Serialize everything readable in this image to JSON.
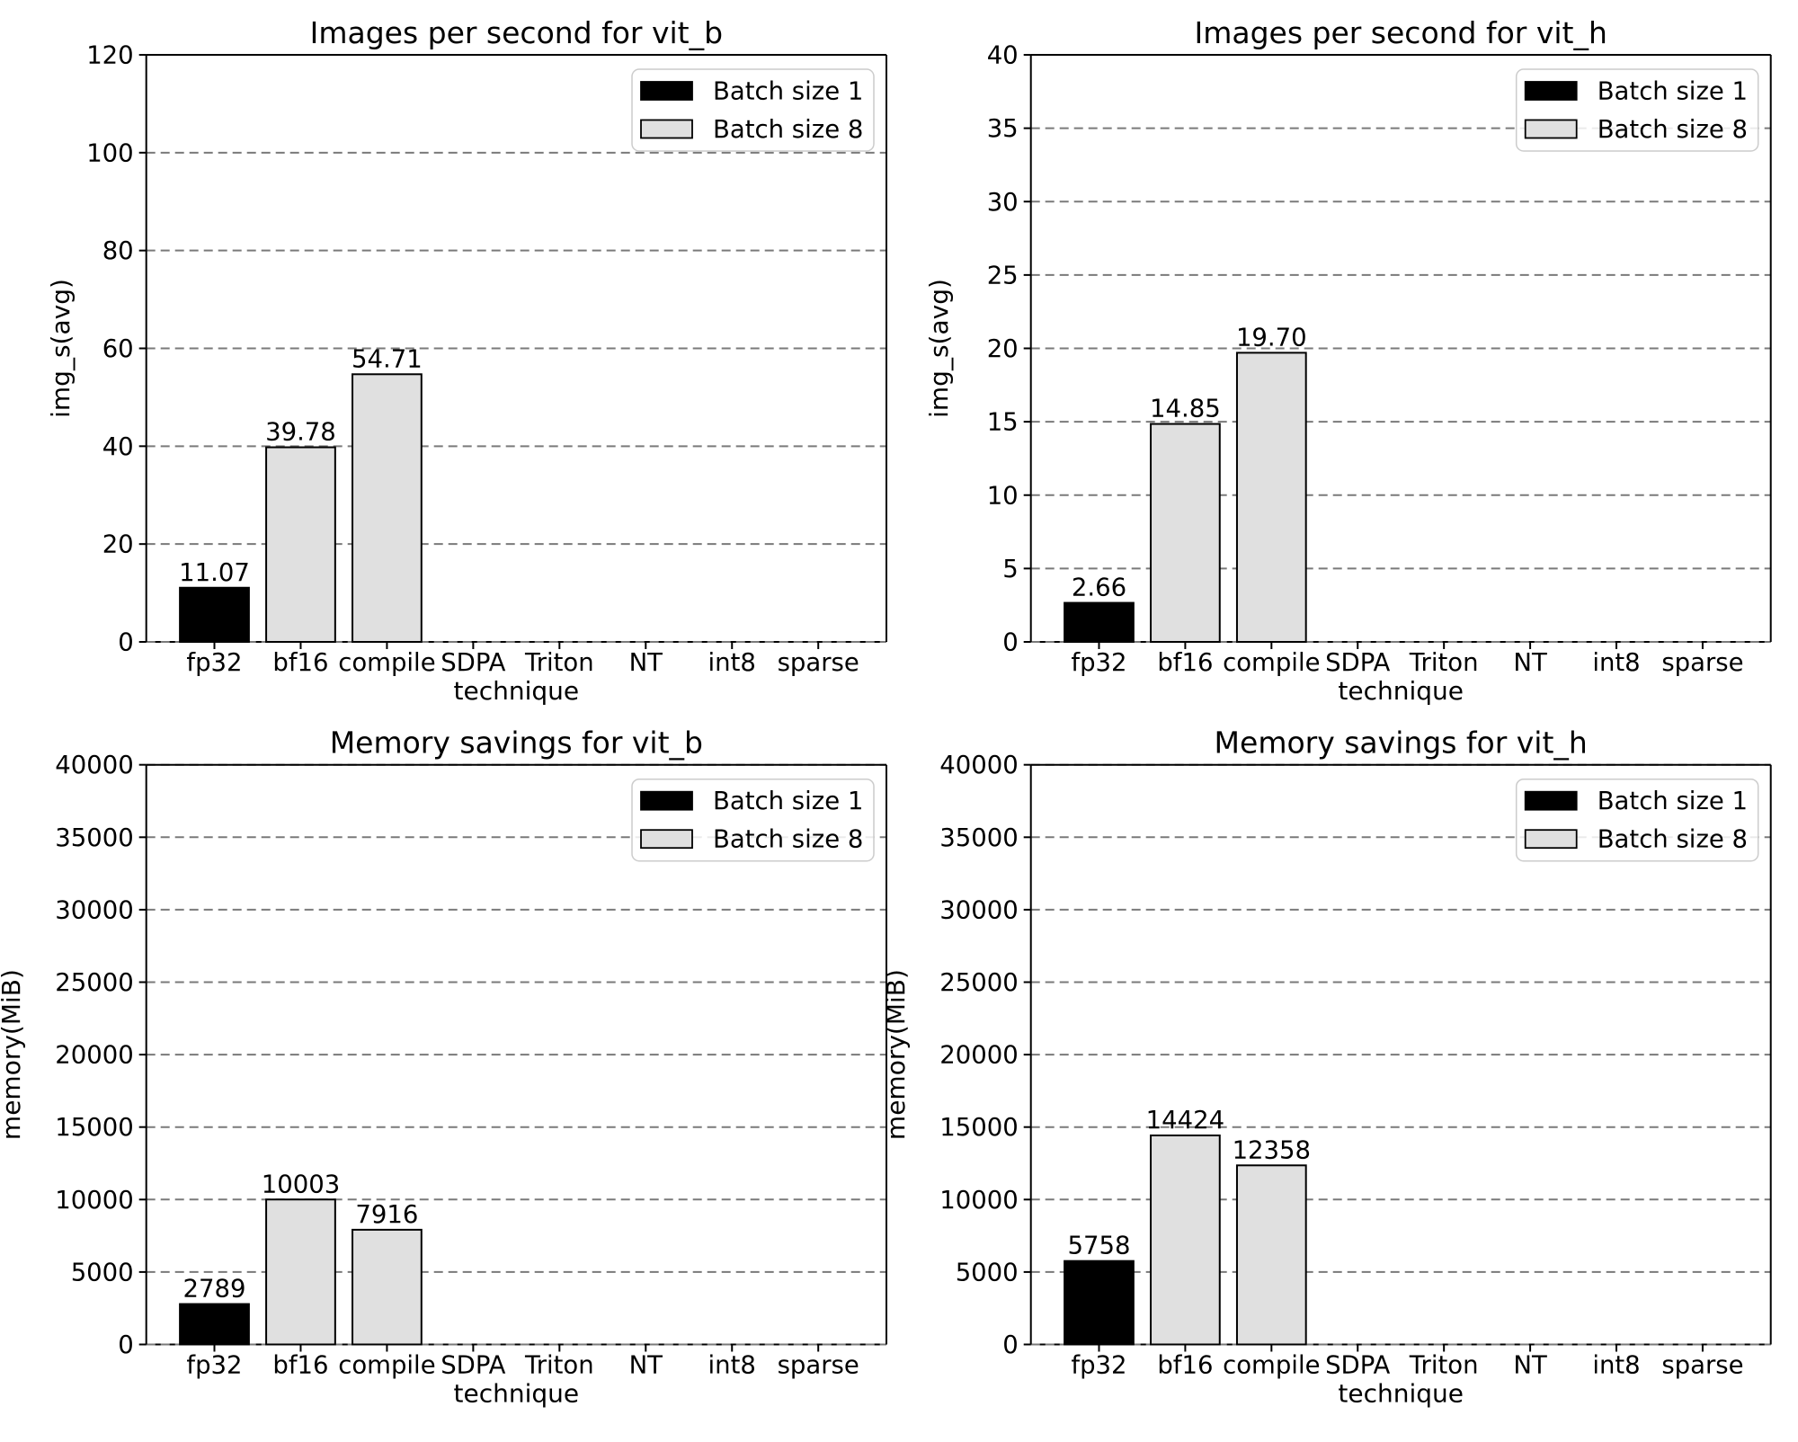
{
  "figure": {
    "description": "2x2 grid of benchmark bar charts for vit_b and vit_h models"
  },
  "colors": {
    "background": "#ffffff",
    "bar_batch1": "#000000",
    "bar_batch8": "#e0e0e0",
    "bar_edge": "#000000",
    "grid": "#7a7a7a",
    "axis": "#000000",
    "text": "#000000",
    "legend_border": "#cccccc",
    "legend_fill": "#ffffff"
  },
  "chart_data": [
    {
      "type": "bar",
      "title": "Images per second for vit_b",
      "xlabel": "technique",
      "ylabel": "img_s(avg)",
      "categories": [
        "fp32",
        "bf16",
        "compile",
        "SDPA",
        "Triton",
        "NT",
        "int8",
        "sparse"
      ],
      "series": [
        {
          "name": "Batch size 1",
          "color": "#000000",
          "values": [
            11.07,
            null,
            null,
            null,
            null,
            null,
            null,
            null
          ],
          "labels": [
            "11.07",
            "",
            "",
            "",
            "",
            "",
            "",
            ""
          ]
        },
        {
          "name": "Batch size 8",
          "color": "#e0e0e0",
          "values": [
            null,
            39.78,
            54.71,
            null,
            null,
            null,
            null,
            null
          ],
          "labels": [
            "",
            "39.78",
            "54.71",
            "",
            "",
            "",
            "",
            ""
          ]
        }
      ],
      "ylim": [
        0,
        120
      ],
      "yticks": [
        0,
        20,
        40,
        60,
        80,
        100,
        120
      ],
      "ytick_labels": [
        "0",
        "20",
        "40",
        "60",
        "80",
        "100",
        "120"
      ],
      "legend": {
        "position": "upper right",
        "entries": [
          "Batch size 1",
          "Batch size 8"
        ]
      },
      "grid": "dashed"
    },
    {
      "type": "bar",
      "title": "Images per second for vit_h",
      "xlabel": "technique",
      "ylabel": "img_s(avg)",
      "categories": [
        "fp32",
        "bf16",
        "compile",
        "SDPA",
        "Triton",
        "NT",
        "int8",
        "sparse"
      ],
      "series": [
        {
          "name": "Batch size 1",
          "color": "#000000",
          "values": [
            2.66,
            null,
            null,
            null,
            null,
            null,
            null,
            null
          ],
          "labels": [
            "2.66",
            "",
            "",
            "",
            "",
            "",
            "",
            ""
          ]
        },
        {
          "name": "Batch size 8",
          "color": "#e0e0e0",
          "values": [
            null,
            14.85,
            19.7,
            null,
            null,
            null,
            null,
            null
          ],
          "labels": [
            "",
            "14.85",
            "19.70",
            "",
            "",
            "",
            "",
            ""
          ]
        }
      ],
      "ylim": [
        0,
        40
      ],
      "yticks": [
        0,
        5,
        10,
        15,
        20,
        25,
        30,
        35,
        40
      ],
      "ytick_labels": [
        "0",
        "5",
        "10",
        "15",
        "20",
        "25",
        "30",
        "35",
        "40"
      ],
      "legend": {
        "position": "upper right",
        "entries": [
          "Batch size 1",
          "Batch size 8"
        ]
      },
      "grid": "dashed"
    },
    {
      "type": "bar",
      "title": "Memory savings for vit_b",
      "xlabel": "technique",
      "ylabel": "memory(MiB)",
      "categories": [
        "fp32",
        "bf16",
        "compile",
        "SDPA",
        "Triton",
        "NT",
        "int8",
        "sparse"
      ],
      "series": [
        {
          "name": "Batch size 1",
          "color": "#000000",
          "values": [
            2789,
            null,
            null,
            null,
            null,
            null,
            null,
            null
          ],
          "labels": [
            "2789",
            "",
            "",
            "",
            "",
            "",
            "",
            ""
          ]
        },
        {
          "name": "Batch size 8",
          "color": "#e0e0e0",
          "values": [
            null,
            10003,
            7916,
            null,
            null,
            null,
            null,
            null
          ],
          "labels": [
            "",
            "10003",
            "7916",
            "",
            "",
            "",
            "",
            ""
          ]
        }
      ],
      "ylim": [
        0,
        40000
      ],
      "yticks": [
        0,
        5000,
        10000,
        15000,
        20000,
        25000,
        30000,
        35000,
        40000
      ],
      "ytick_labels": [
        "0",
        "5000",
        "10000",
        "15000",
        "20000",
        "25000",
        "30000",
        "35000",
        "40000"
      ],
      "legend": {
        "position": "upper right",
        "entries": [
          "Batch size 1",
          "Batch size 8"
        ]
      },
      "grid": "dashed"
    },
    {
      "type": "bar",
      "title": "Memory savings for vit_h",
      "xlabel": "technique",
      "ylabel": "memory(MiB)",
      "categories": [
        "fp32",
        "bf16",
        "compile",
        "SDPA",
        "Triton",
        "NT",
        "int8",
        "sparse"
      ],
      "series": [
        {
          "name": "Batch size 1",
          "color": "#000000",
          "values": [
            5758,
            null,
            null,
            null,
            null,
            null,
            null,
            null
          ],
          "labels": [
            "5758",
            "",
            "",
            "",
            "",
            "",
            "",
            ""
          ]
        },
        {
          "name": "Batch size 8",
          "color": "#e0e0e0",
          "values": [
            null,
            14424,
            12358,
            null,
            null,
            null,
            null,
            null
          ],
          "labels": [
            "",
            "14424",
            "12358",
            "",
            "",
            "",
            "",
            ""
          ]
        }
      ],
      "ylim": [
        0,
        40000
      ],
      "yticks": [
        0,
        5000,
        10000,
        15000,
        20000,
        25000,
        30000,
        35000,
        40000
      ],
      "ytick_labels": [
        "0",
        "5000",
        "10000",
        "15000",
        "20000",
        "25000",
        "30000",
        "35000",
        "40000"
      ],
      "legend": {
        "position": "upper right",
        "entries": [
          "Batch size 1",
          "Batch size 8"
        ]
      },
      "grid": "dashed"
    }
  ]
}
